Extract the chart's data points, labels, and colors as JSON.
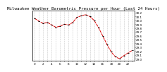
{
  "title": "Milwaukee Weather Barometric Pressure per Hour (Last 24 Hours)",
  "hours": [
    0,
    1,
    2,
    3,
    4,
    5,
    6,
    7,
    8,
    9,
    10,
    11,
    12,
    13,
    14,
    15,
    16,
    17,
    18,
    19,
    20,
    21,
    22,
    23
  ],
  "pressure": [
    30.05,
    29.98,
    29.92,
    29.95,
    29.88,
    29.82,
    29.85,
    29.9,
    29.88,
    29.95,
    30.08,
    30.12,
    30.15,
    30.1,
    30.0,
    29.82,
    29.6,
    29.38,
    29.18,
    29.05,
    29.0,
    29.08,
    29.15,
    29.22
  ],
  "ylim_min": 28.95,
  "ylim_max": 30.25,
  "yticks": [
    29.0,
    29.1,
    29.2,
    29.3,
    29.4,
    29.5,
    29.6,
    29.7,
    29.8,
    29.9,
    30.0,
    30.1,
    30.2
  ],
  "ytick_labels": [
    "29.0",
    "29.1",
    "29.2",
    "29.3",
    "29.4",
    "29.5",
    "29.6",
    "29.7",
    "29.8",
    "29.9",
    "30.0",
    "30.1",
    "30.2"
  ],
  "line_color": "#dd0000",
  "marker_color": "#000000",
  "bg_color": "#ffffff",
  "plot_bg_color": "#ffffff",
  "grid_color": "#999999",
  "title_fontsize": 4.2,
  "tick_fontsize": 3.0,
  "linewidth": 0.7,
  "markersize": 1.2
}
